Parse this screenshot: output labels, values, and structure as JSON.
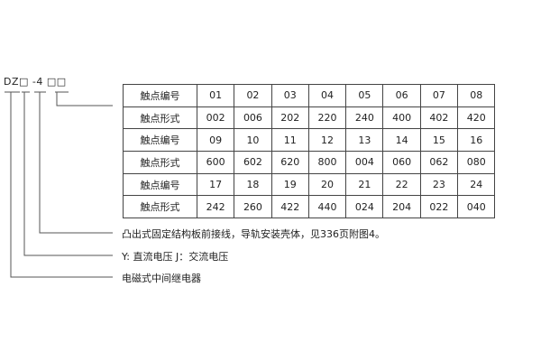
{
  "model_code": "DZ□ -4 □□",
  "table": {
    "rows": [
      {
        "label": "触点编号",
        "cells": [
          "01",
          "02",
          "03",
          "04",
          "05",
          "06",
          "07",
          "08"
        ]
      },
      {
        "label": "触点形式",
        "cells": [
          "002",
          "006",
          "202",
          "220",
          "240",
          "400",
          "402",
          "420"
        ]
      },
      {
        "label": "触点编号",
        "cells": [
          "09",
          "10",
          "11",
          "12",
          "13",
          "14",
          "15",
          "16"
        ]
      },
      {
        "label": "触点形式",
        "cells": [
          "600",
          "602",
          "620",
          "800",
          "004",
          "060",
          "062",
          "080"
        ]
      },
      {
        "label": "触点编号",
        "cells": [
          "17",
          "18",
          "19",
          "20",
          "21",
          "22",
          "23",
          "24"
        ]
      },
      {
        "label": "触点形式",
        "cells": [
          "242",
          "260",
          "422",
          "440",
          "024",
          "204",
          "022",
          "040"
        ]
      }
    ]
  },
  "notes": [
    "凸出式固定结构板前接线，导轨安装壳体，见336页附图4。",
    "Y: 直流电压   J：交流电压",
    "电磁式中间继电器"
  ]
}
